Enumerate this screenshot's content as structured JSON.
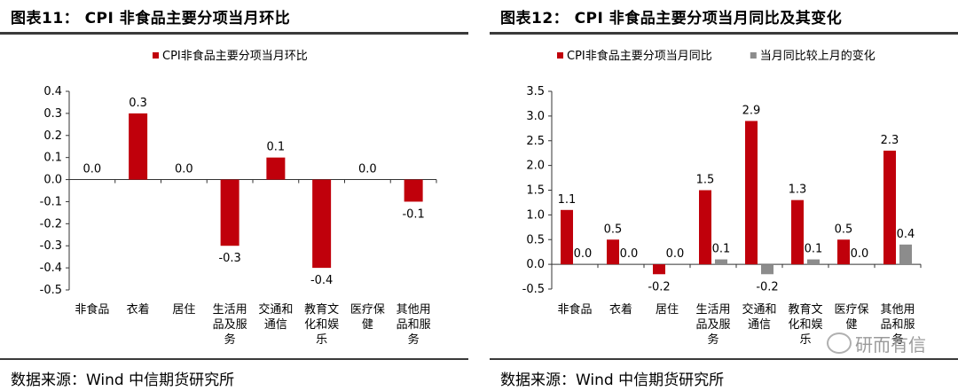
{
  "left": {
    "title": "图表11： CPI 非食品主要分项当月环比",
    "source": "数据来源：Wind 中信期货研究所"
  },
  "right": {
    "title": "图表12： CPI 非食品主要分项当月同比及其变化",
    "source": "数据来源：Wind 中信期货研究所"
  },
  "watermark": "研而有信",
  "colors": {
    "red": "#c0000b",
    "gray": "#8c8c8c"
  },
  "chart_data": [
    {
      "type": "bar",
      "title": "图表11： CPI 非食品主要分项当月环比",
      "categories": [
        [
          "非食品"
        ],
        [
          "衣着"
        ],
        [
          "居住"
        ],
        [
          "生活用",
          "品及服",
          "务"
        ],
        [
          "交通和",
          "通信"
        ],
        [
          "教育文",
          "化和娱",
          "乐"
        ],
        [
          "医疗保",
          "健"
        ],
        [
          "其他用",
          "品和服",
          "务"
        ]
      ],
      "series": [
        {
          "name": "CPI非食品主要分项当月环比",
          "color": "#c0000b",
          "values": [
            0.0,
            0.3,
            0.0,
            -0.3,
            0.1,
            -0.4,
            0.0,
            -0.1
          ],
          "labels": [
            "0.0",
            "0.3",
            "0.0",
            "-0.3",
            "0.1",
            "-0.4",
            "0.0",
            "-0.1"
          ]
        }
      ],
      "yticks": [
        "0.4",
        "0.3",
        "0.2",
        "0.1",
        "0.0",
        "-0.1",
        "-0.2",
        "-0.3",
        "-0.4",
        "-0.5"
      ],
      "ylim": [
        -0.5,
        0.4
      ],
      "legend": "top",
      "grid": false
    },
    {
      "type": "bar",
      "title": "图表12： CPI 非食品主要分项当月同比及其变化",
      "categories": [
        [
          "非食品"
        ],
        [
          "衣着"
        ],
        [
          "居住"
        ],
        [
          "生活用",
          "品及服",
          "务"
        ],
        [
          "交通和",
          "通信"
        ],
        [
          "教育文",
          "化和娱",
          "乐"
        ],
        [
          "医疗保",
          "健"
        ],
        [
          "其他用",
          "品和服",
          "务"
        ]
      ],
      "series": [
        {
          "name": "CPI非食品主要分项当月同比",
          "color": "#c0000b",
          "values": [
            1.1,
            0.5,
            -0.2,
            1.5,
            2.9,
            1.3,
            0.5,
            2.3
          ],
          "labels": [
            "1.1",
            "0.5",
            "-0.2",
            "1.5",
            "2.9",
            "1.3",
            "0.5",
            "2.3"
          ]
        },
        {
          "name": "当月同比较上月的变化",
          "color": "#8c8c8c",
          "values": [
            0.0,
            0.0,
            0.0,
            0.1,
            -0.2,
            0.1,
            0.0,
            0.4
          ],
          "labels": [
            "0.0",
            "0.0",
            "0.0",
            "0.1",
            "-0.2",
            "0.1",
            "0.0",
            "0.4"
          ]
        }
      ],
      "yticks": [
        "3.5",
        "3.0",
        "2.5",
        "2.0",
        "1.5",
        "1.0",
        "0.5",
        "0.0",
        "-0.5"
      ],
      "ylim": [
        -0.5,
        3.5
      ],
      "legend": "top",
      "grid": false
    }
  ]
}
